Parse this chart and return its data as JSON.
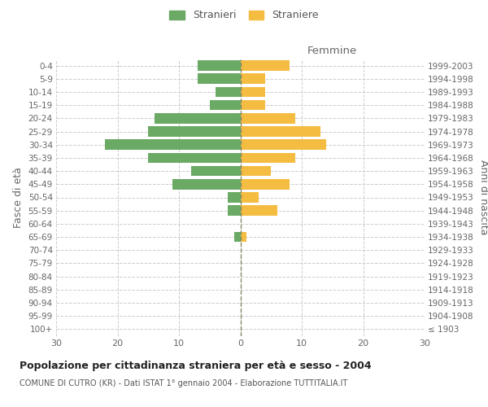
{
  "age_groups": [
    "100+",
    "95-99",
    "90-94",
    "85-89",
    "80-84",
    "75-79",
    "70-74",
    "65-69",
    "60-64",
    "55-59",
    "50-54",
    "45-49",
    "40-44",
    "35-39",
    "30-34",
    "25-29",
    "20-24",
    "15-19",
    "10-14",
    "5-9",
    "0-4"
  ],
  "birth_years": [
    "≤ 1903",
    "1904-1908",
    "1909-1913",
    "1914-1918",
    "1919-1923",
    "1924-1928",
    "1929-1933",
    "1934-1938",
    "1939-1943",
    "1944-1948",
    "1949-1953",
    "1954-1958",
    "1959-1963",
    "1964-1968",
    "1969-1973",
    "1974-1978",
    "1979-1983",
    "1984-1988",
    "1989-1993",
    "1994-1998",
    "1999-2003"
  ],
  "males": [
    0,
    0,
    0,
    0,
    0,
    0,
    0,
    1,
    0,
    2,
    2,
    11,
    8,
    15,
    22,
    15,
    14,
    5,
    4,
    7,
    7
  ],
  "females": [
    0,
    0,
    0,
    0,
    0,
    0,
    0,
    1,
    0,
    6,
    3,
    8,
    5,
    9,
    14,
    13,
    9,
    4,
    4,
    4,
    8
  ],
  "male_color": "#6aaa64",
  "female_color": "#f5bc42",
  "background_color": "#ffffff",
  "grid_color": "#cccccc",
  "title": "Popolazione per cittadinanza straniera per età e sesso - 2004",
  "subtitle": "COMUNE DI CUTRO (KR) - Dati ISTAT 1° gennaio 2004 - Elaborazione TUTTITALIA.IT",
  "ylabel_left": "Fasce di età",
  "ylabel_right": "Anni di nascita",
  "xlabel_right": "Femmine",
  "legend_male": "Stranieri",
  "legend_female": "Straniere",
  "xlim": 30,
  "centerline_color": "#888866"
}
